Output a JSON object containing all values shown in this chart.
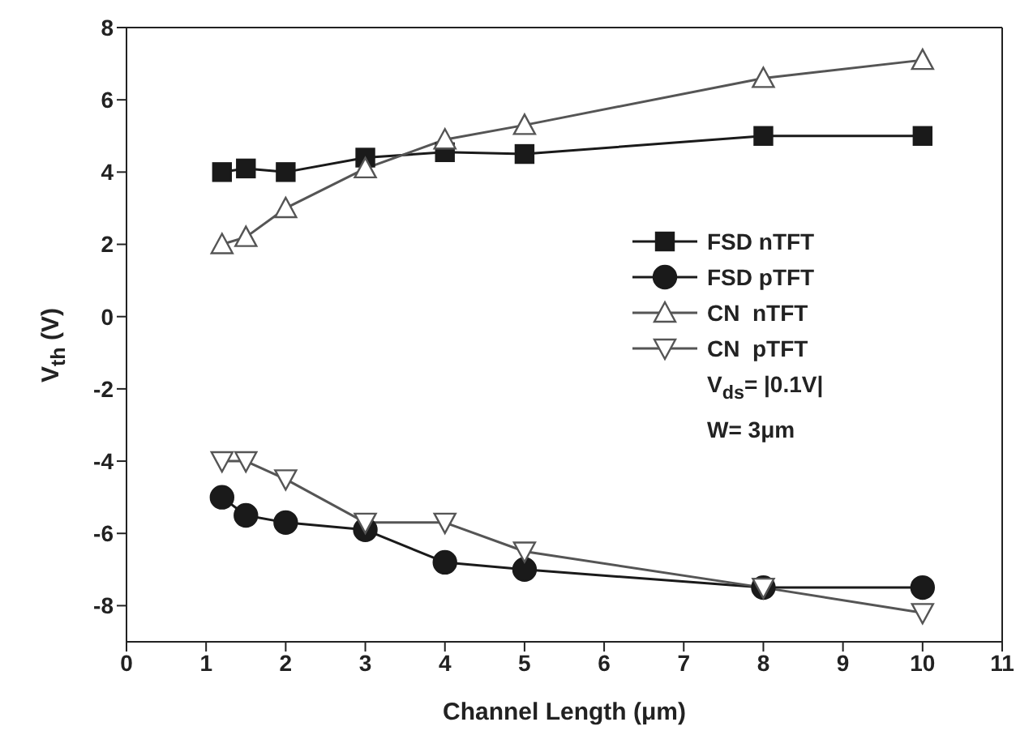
{
  "chart_data": {
    "type": "line",
    "xlabel": "Channel Length (μm)",
    "ylabel": "V$_{th}$ (V)",
    "x": [
      1.2,
      1.5,
      2,
      3,
      4,
      5,
      8,
      10
    ],
    "series": [
      {
        "name": "FSD nTFT",
        "color": "#1a1a1a",
        "marker": "square",
        "values": [
          4.0,
          4.1,
          4.0,
          4.4,
          4.55,
          4.5,
          5.0,
          5.0
        ]
      },
      {
        "name": "FSD pTFT",
        "color": "#1a1a1a",
        "marker": "circle",
        "values": [
          -5.0,
          -5.5,
          -5.7,
          -5.9,
          -6.8,
          -7.0,
          -7.5,
          -7.5
        ]
      },
      {
        "name": "CN  nTFT",
        "color": "#555555",
        "marker": "triangle",
        "values": [
          2.0,
          2.2,
          3.0,
          4.1,
          4.9,
          5.3,
          6.6,
          7.1
        ]
      },
      {
        "name": "CN  pTFT",
        "color": "#555555",
        "marker": "triangle-down",
        "values": [
          -4.0,
          -4.0,
          -4.5,
          -5.7,
          -5.7,
          -6.5,
          -7.5,
          -8.2
        ]
      }
    ],
    "annotations": [
      "V$_{ds}$= |0.1V|",
      "W= 3μm"
    ],
    "xlim": [
      0,
      11
    ],
    "xticks": [
      0,
      1,
      2,
      3,
      4,
      5,
      6,
      7,
      8,
      9,
      10,
      11
    ],
    "ylim": [
      -9,
      8
    ],
    "yticks": [
      -8,
      -6,
      -4,
      -2,
      0,
      2,
      4,
      6,
      8
    ],
    "grid": false,
    "legend": "right",
    "line_style": "solid"
  }
}
